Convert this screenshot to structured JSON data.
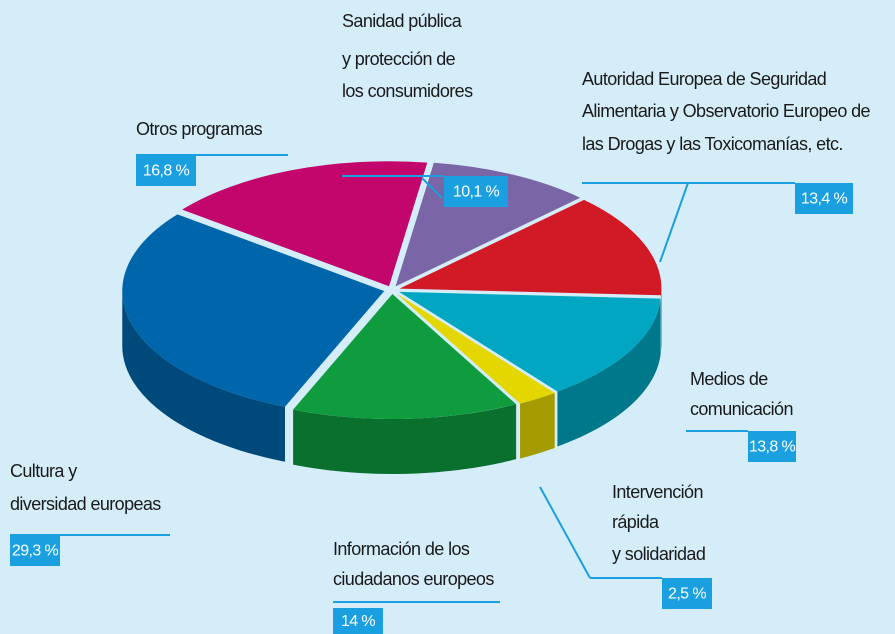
{
  "chart_data": {
    "type": "pie",
    "categories": [
      [
        "Sanidad pública",
        "y protección de",
        "los consumidores"
      ],
      [
        "Autoridad Europea de Seguridad",
        "Alimentaria y Observatorio Europeo de",
        "las Drogas y las Toxicomanías, etc."
      ],
      [
        "Medios de",
        "comunicación"
      ],
      [
        "Intervención",
        "rápida",
        "y solidaridad"
      ],
      [
        "Información de los",
        "ciudadanos europeos"
      ],
      [
        "Cultura y",
        "diversidad europeas"
      ],
      [
        "Otros programas"
      ]
    ],
    "values": [
      10.1,
      13.4,
      13.8,
      2.5,
      14,
      29.3,
      16.8
    ],
    "value_labels": [
      "10,1 %",
      "13,4 %",
      "13,8 %",
      "2,5 %",
      "14 %",
      "29,3 %",
      "16,8 %"
    ],
    "colors": [
      "#7a66a6",
      "#d21a26",
      "#00a6c2",
      "#e4d700",
      "#0e9c3e",
      "#0066ab",
      "#c3066c"
    ]
  }
}
